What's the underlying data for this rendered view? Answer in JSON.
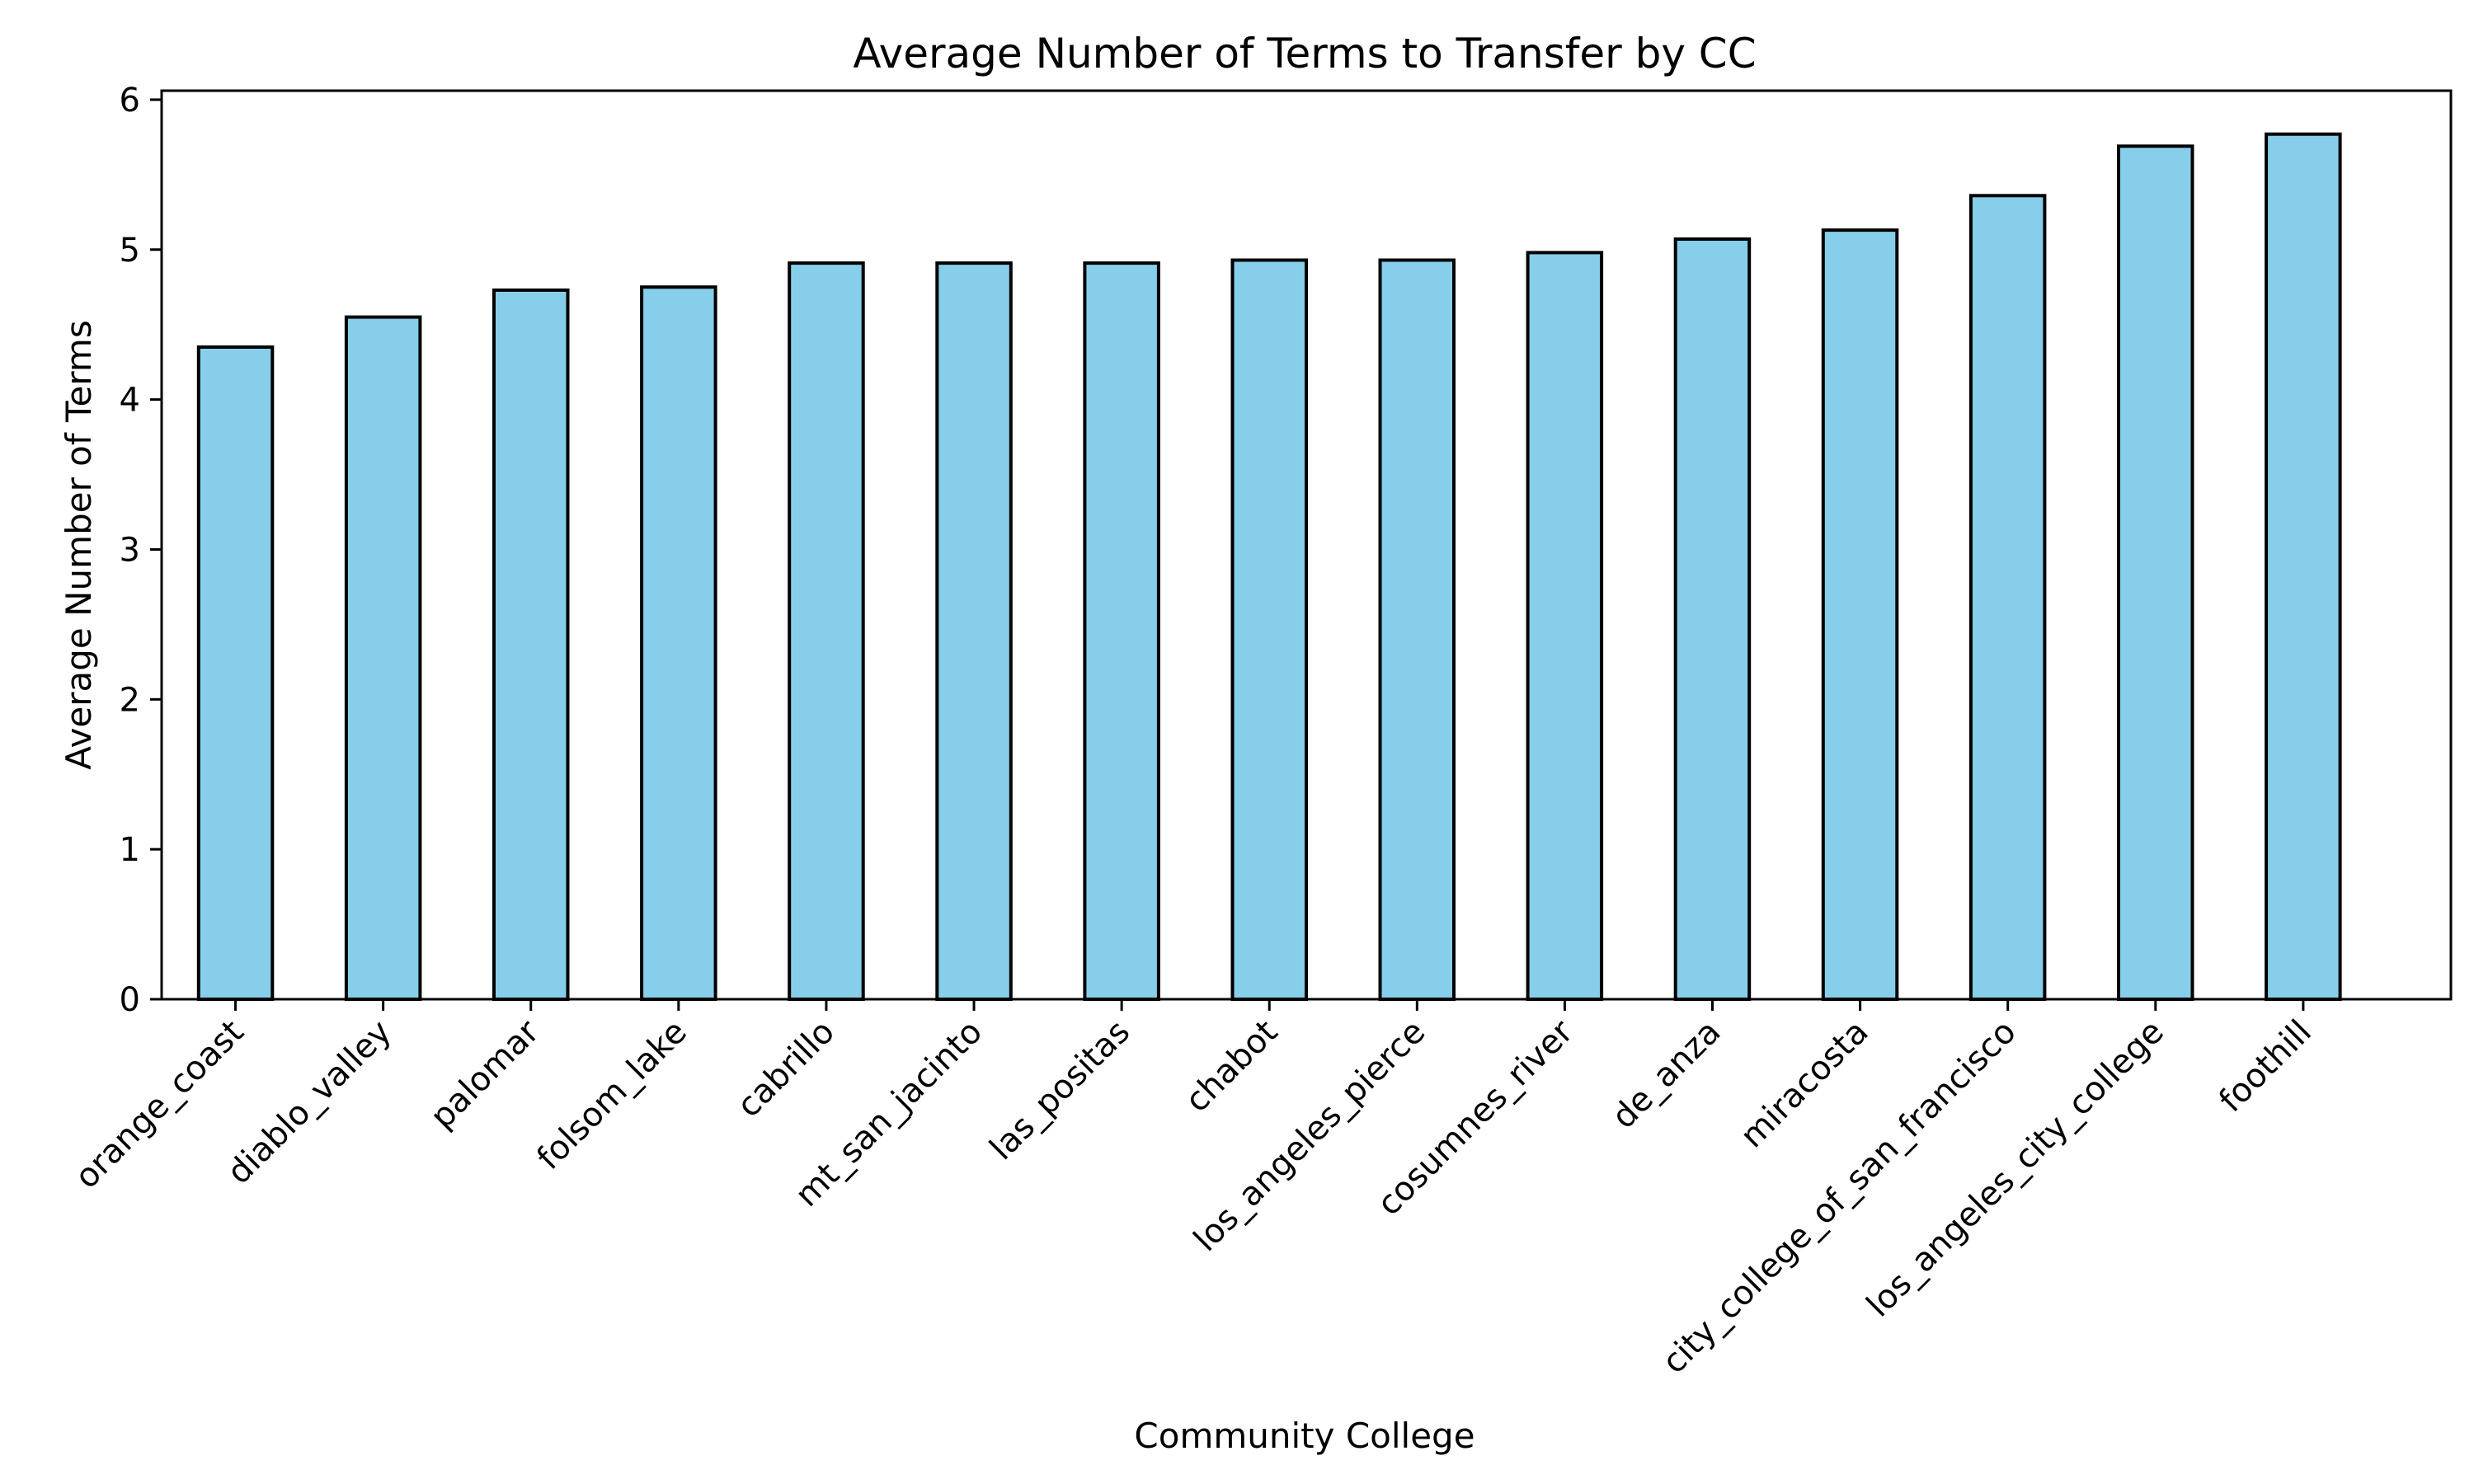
{
  "chart_data": {
    "type": "bar",
    "title": "Average Number of Terms to Transfer by CC",
    "xlabel": "Community College",
    "ylabel": "Average Number of Terms",
    "categories": [
      "orange_coast",
      "diablo_valley",
      "palomar",
      "folsom_lake",
      "cabrillo",
      "mt_san_jacinto",
      "las_positas",
      "chabot",
      "los_angeles_pierce",
      "cosumnes_river",
      "de_anza",
      "miracosta",
      "city_college_of_san_francisco",
      "los_angeles_city_college",
      "foothill"
    ],
    "values": [
      4.35,
      4.55,
      4.73,
      4.75,
      4.91,
      4.91,
      4.91,
      4.93,
      4.93,
      4.98,
      5.07,
      5.13,
      5.36,
      5.69,
      5.77
    ],
    "yticks": [
      0,
      1,
      2,
      3,
      4,
      5,
      6
    ],
    "ylim": [
      0,
      6.06
    ],
    "grid": false,
    "legend": "none",
    "colors": {
      "bar_fill": "#87CEEB",
      "bar_edge": "#000000"
    }
  }
}
